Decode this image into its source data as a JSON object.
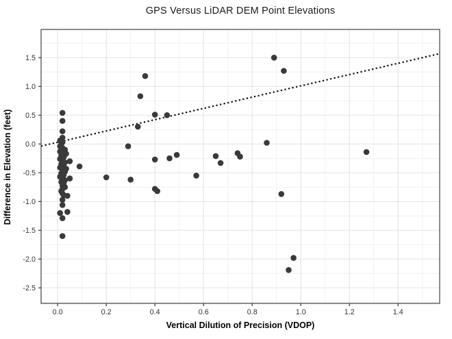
{
  "chart_data": {
    "type": "scatter",
    "title": "GPS Versus LiDAR DEM Point Elevations",
    "xlabel": "Vertical Dilution of Precision (VDOP)",
    "ylabel": "Difference in Elevation (feet)",
    "xlim": [
      -0.068,
      1.571
    ],
    "ylim": [
      -2.77,
      1.99
    ],
    "x_ticks": [
      0.0,
      0.2,
      0.4,
      0.6,
      0.8,
      1.0,
      1.2,
      1.4
    ],
    "x_tick_labels": [
      "0.0",
      "0.2",
      "0.4",
      "0.6",
      "0.8",
      "1.0",
      "1.2",
      "1.4"
    ],
    "y_ticks": [
      -2.5,
      -2.0,
      -1.5,
      -1.0,
      -0.5,
      0.0,
      0.5,
      1.0,
      1.5
    ],
    "y_tick_labels": [
      "-2.5",
      "-2.0",
      "-1.5",
      "-1.0",
      "-0.5",
      "0.0",
      "0.5",
      "1.0",
      "1.5"
    ],
    "grid": "major+minor",
    "legend": "none",
    "colors": {
      "point": "#3a3a3a",
      "trend_line": "#111111",
      "grid_major": "#e3e3e3",
      "grid_minor": "#f1f1f1",
      "panel_border": "#4d4d4d",
      "tick_label": "#333333",
      "background": "#ffffff"
    },
    "trend_line": {
      "style": "dotted",
      "slope": 0.98,
      "intercept": 0.03
    },
    "points": [
      [
        0.02,
        0.54
      ],
      [
        0.02,
        0.4
      ],
      [
        0.02,
        0.22
      ],
      [
        0.02,
        0.11
      ],
      [
        0.01,
        0.06
      ],
      [
        0.02,
        0.03
      ],
      [
        0.015,
        0.0
      ],
      [
        0.01,
        -0.04
      ],
      [
        0.02,
        -0.07
      ],
      [
        0.03,
        -0.1
      ],
      [
        0.01,
        -0.13
      ],
      [
        0.02,
        -0.16
      ],
      [
        0.035,
        -0.17
      ],
      [
        0.015,
        -0.2
      ],
      [
        0.025,
        -0.23
      ],
      [
        0.01,
        -0.26
      ],
      [
        0.02,
        -0.29
      ],
      [
        0.03,
        -0.32
      ],
      [
        0.015,
        -0.35
      ],
      [
        0.025,
        -0.38
      ],
      [
        0.01,
        -0.41
      ],
      [
        0.035,
        -0.43
      ],
      [
        0.02,
        -0.45
      ],
      [
        0.03,
        -0.48
      ],
      [
        0.015,
        -0.51
      ],
      [
        0.025,
        -0.54
      ],
      [
        0.01,
        -0.57
      ],
      [
        0.02,
        -0.6
      ],
      [
        0.03,
        -0.63
      ],
      [
        0.015,
        -0.66
      ],
      [
        0.025,
        -0.69
      ],
      [
        0.02,
        -0.72
      ],
      [
        0.03,
        -0.75
      ],
      [
        0.02,
        -0.78
      ],
      [
        0.015,
        -0.82
      ],
      [
        0.02,
        -0.86
      ],
      [
        0.025,
        -0.89
      ],
      [
        0.05,
        -0.3
      ],
      [
        0.09,
        -0.39
      ],
      [
        0.05,
        -0.6
      ],
      [
        0.04,
        -0.9
      ],
      [
        0.02,
        -0.97
      ],
      [
        0.02,
        -1.06
      ],
      [
        0.04,
        -1.18
      ],
      [
        0.01,
        -1.2
      ],
      [
        0.02,
        -1.29
      ],
      [
        0.02,
        -1.6
      ],
      [
        0.2,
        -0.58
      ],
      [
        0.29,
        -0.04
      ],
      [
        0.3,
        -0.62
      ],
      [
        0.33,
        0.3
      ],
      [
        0.34,
        0.83
      ],
      [
        0.36,
        1.18
      ],
      [
        0.4,
        0.51
      ],
      [
        0.45,
        0.5
      ],
      [
        0.4,
        -0.27
      ],
      [
        0.4,
        -0.78
      ],
      [
        0.41,
        -0.82
      ],
      [
        0.46,
        -0.25
      ],
      [
        0.49,
        -0.19
      ],
      [
        0.57,
        -0.55
      ],
      [
        0.65,
        -0.21
      ],
      [
        0.67,
        -0.33
      ],
      [
        0.74,
        -0.16
      ],
      [
        0.75,
        -0.22
      ],
      [
        0.86,
        0.02
      ],
      [
        0.89,
        1.5
      ],
      [
        0.93,
        1.27
      ],
      [
        0.92,
        -0.87
      ],
      [
        0.95,
        -2.19
      ],
      [
        0.97,
        -1.98
      ],
      [
        1.27,
        -0.14
      ]
    ]
  }
}
